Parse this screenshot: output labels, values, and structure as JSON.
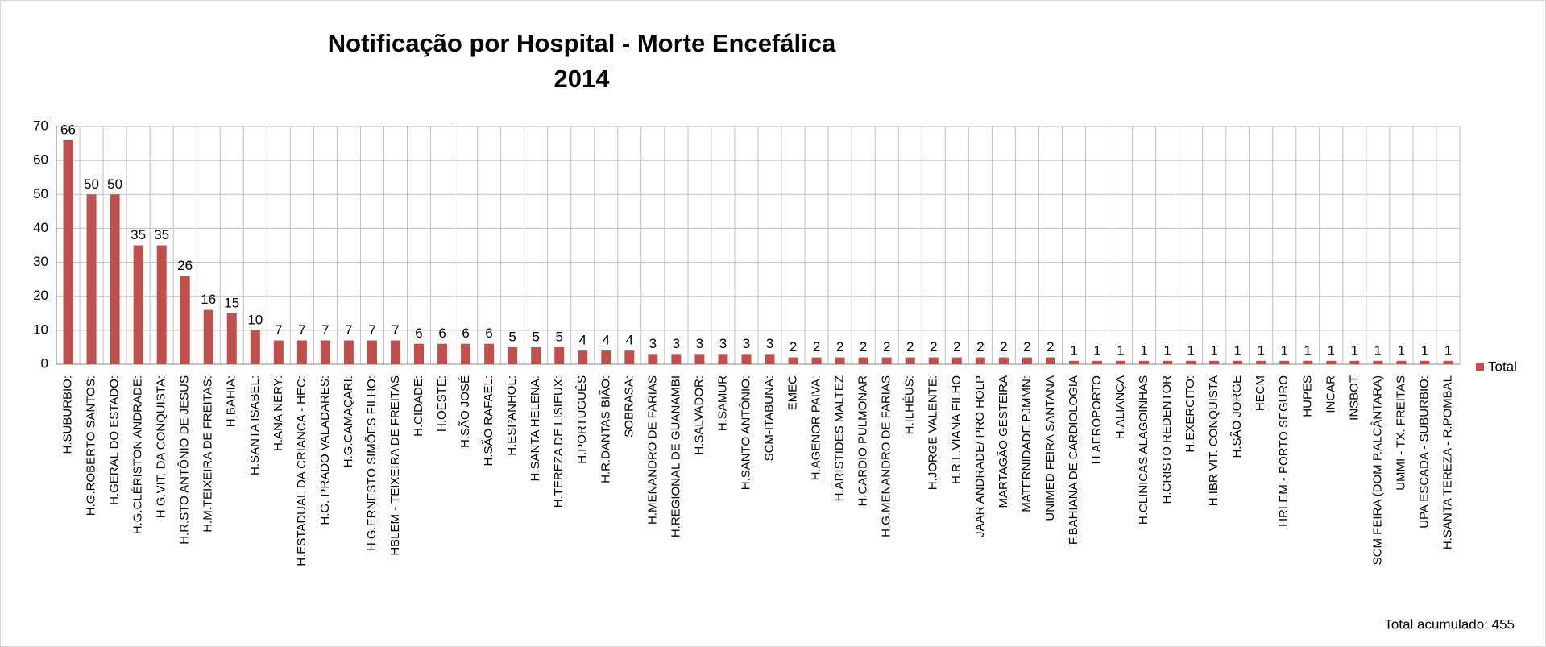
{
  "chart_data": {
    "type": "bar",
    "title": "Notificação por Hospital - Morte Encefálica",
    "subtitle": "2014",
    "categories": [
      "H.SUBURBIO:",
      "H.G.ROBERTO SANTOS:",
      "H.GERAL DO ESTADO:",
      "H.G.CLÉRISTON ANDRADE:",
      "H.G.VIT. DA CONQUISTA:",
      "H.R.STO ANTÔNIO DE JESUS",
      "H.M.TEIXEIRA DE FREITAS:",
      "H.BAHIA:",
      "H.SANTA ISABEL:",
      "H.ANA NERY:",
      "H.ESTADUAL DA CRIANCA - HEC:",
      "H.G. PRADO VALADARES:",
      "H.G.CAMAÇARI:",
      "H.G.ERNESTO SIMÕES FILHO:",
      "HBLEM - TEIXEIRA DE FREITAS",
      "H.CIDADE:",
      "H.OESTE:",
      "H.SÃO JOSÉ",
      "H.SÃO RAFAEL:",
      "H.ESPANHOL:",
      "H.SANTA HELENA:",
      "H.TEREZA DE LISIEUX:",
      "H.PORTUGUÊS",
      "H.R.DANTAS BIÃO:",
      "SOBRASA:",
      "H.MENANDRO DE FARIAS",
      "H.REGIONAL DE GUANAMBI",
      "H.SALVADOR:",
      "H.SAMUR",
      "H.SANTO ANTÔNIO:",
      "SCM-ITABUNA:",
      "EMEC",
      "H.AGENOR PAIVA:",
      "H.ARISTIDES MALTEZ",
      "H.CARDIO PULMONAR",
      "H.G.MENANDRO DE FARIAS",
      "H.ILHÉUS:",
      "H.JORGE VALENTE:",
      "H.R.L.VIANA FILHO",
      "JAAR ANDRADE/ PRO HOLP",
      "MARTAGÃO GESTEIRA",
      "MATERNIDADE PJMMN:",
      "UNIMED FEIRA SANTANA",
      "F.BAHIANA DE CARDIOLOGIA",
      "H.AEROPORTO",
      "H.ALIANÇA",
      "H.CLINICAS ALAGOINHAS",
      "H.CRISTO REDENTOR",
      "H.EXERCITO:",
      "H.IBR VIT. CONQUISTA",
      "H.SÃO JORGE",
      "HECM",
      "HRLEM - PORTO SEGURO",
      "HUPES",
      "INCAR",
      "INSBOT",
      "SCM FEIRA (DOM P.ALCÂNTARA)",
      "UMMI - TX. FREITAS",
      "UPA ESCADA - SUBURBIO:",
      "H.SANTA TEREZA - R.POMBAL"
    ],
    "series": [
      {
        "name": "Total",
        "color": "#c0504d",
        "values": [
          66,
          50,
          50,
          35,
          35,
          26,
          16,
          15,
          10,
          7,
          7,
          7,
          7,
          7,
          7,
          6,
          6,
          6,
          6,
          5,
          5,
          5,
          4,
          4,
          4,
          3,
          3,
          3,
          3,
          3,
          3,
          2,
          2,
          2,
          2,
          2,
          2,
          2,
          2,
          2,
          2,
          2,
          2,
          1,
          1,
          1,
          1,
          1,
          1,
          1,
          1,
          1,
          1,
          1,
          1,
          1,
          1,
          1,
          1,
          1
        ]
      }
    ],
    "ylim": [
      0,
      70
    ],
    "yticks": [
      0,
      10,
      20,
      30,
      40,
      50,
      60,
      70
    ],
    "grid": true,
    "legend": "right",
    "annotation": "Total acumulado: 455"
  }
}
